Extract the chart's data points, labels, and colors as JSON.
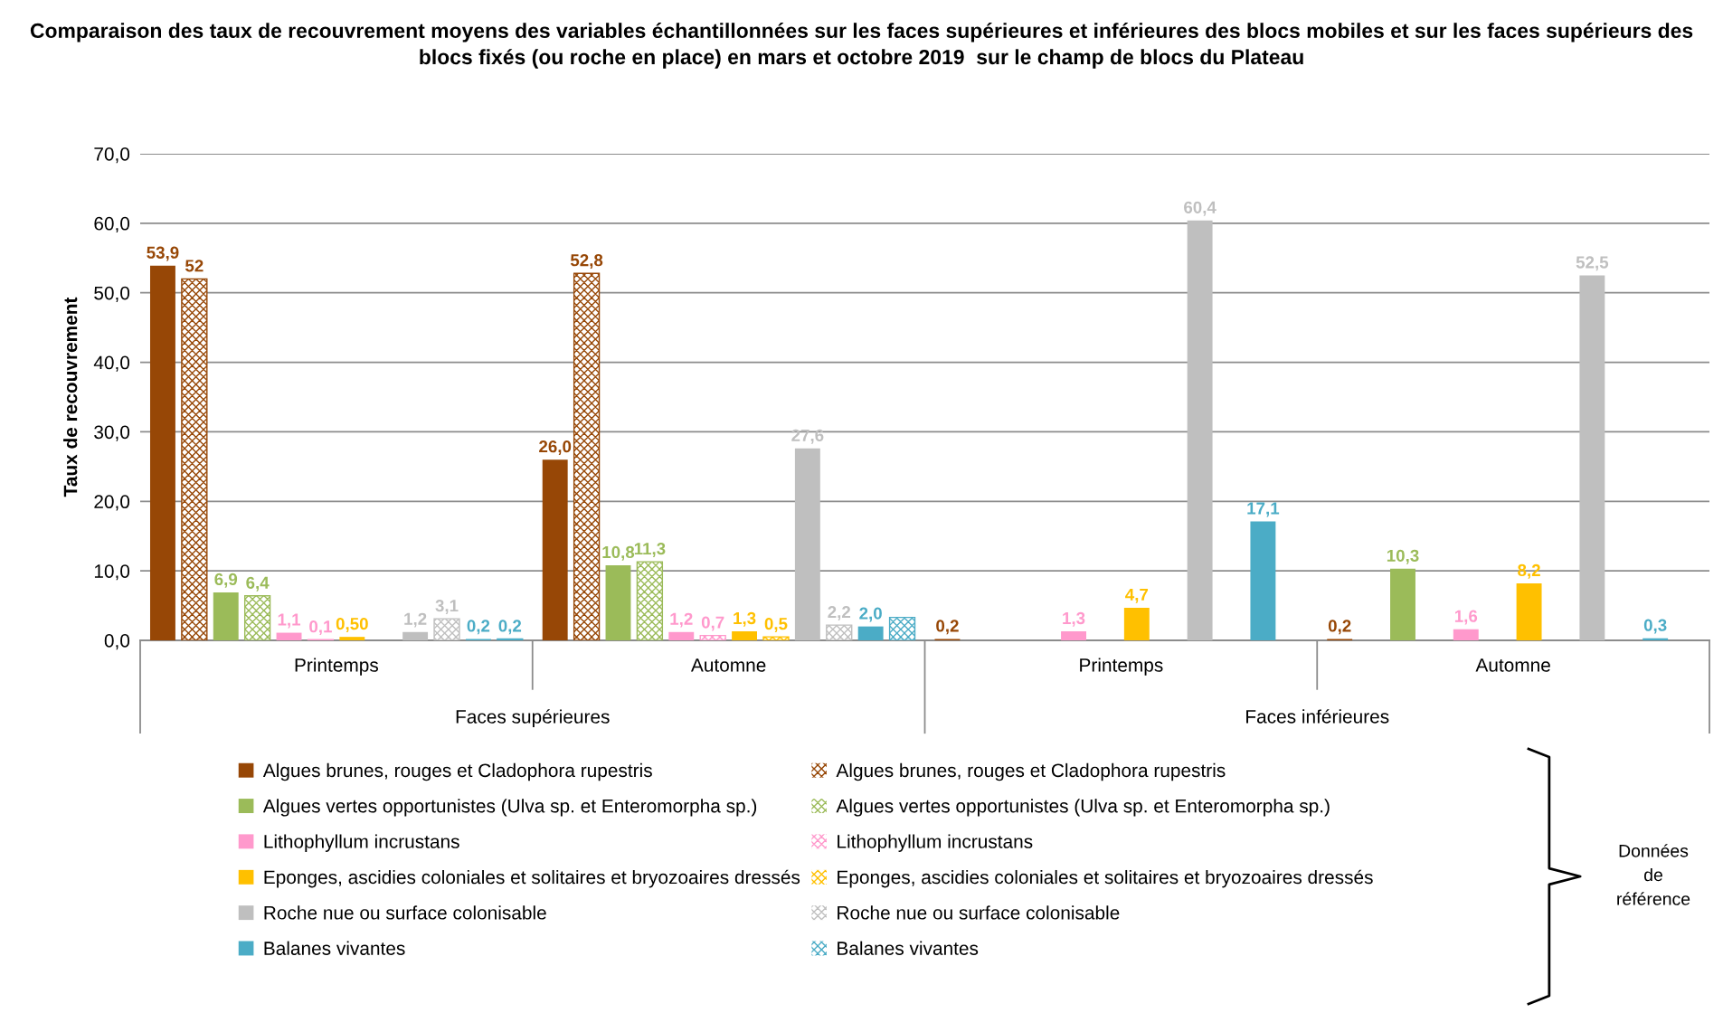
{
  "chart_data": {
    "type": "bar",
    "title": "Comparaison des taux de recouvrement moyens des variables échantillonnées sur les faces supérieures et inférieures des blocs mobiles et sur les faces supérieurs des blocs fixés (ou roche en place) en mars et octobre 2019  sur le champ de blocs du Plateau",
    "ylabel": "Taux de recouvrement",
    "categories": [
      "Printemps",
      "Automne",
      "Printemps",
      "Automne"
    ],
    "annotations": [
      "Faces supérieures",
      "Faces inférieures",
      "Données de référence"
    ],
    "ylim": [
      0,
      70
    ],
    "yticks": [
      {
        "value": 0,
        "label": "0,0"
      },
      {
        "value": 10,
        "label": "10,0"
      },
      {
        "value": 20,
        "label": "20,0"
      },
      {
        "value": 30,
        "label": "30,0"
      },
      {
        "value": 40,
        "label": "40,0"
      },
      {
        "value": 50,
        "label": "50,0"
      },
      {
        "value": 60,
        "label": "60,0"
      },
      {
        "value": 70,
        "label": "70,0"
      }
    ],
    "grid": "y",
    "legend": "bottom",
    "series": [
      {
        "name": "Algues brunes, rouges et Cladophora rupestris",
        "color": "#974706",
        "values": [
          53.9,
          26.0,
          0.2,
          0.2
        ],
        "value_labels": [
          "53,9",
          "26,0",
          "0,2",
          "0,2"
        ]
      },
      {
        "name": "Algues brunes, rouges et Cladophora rupestris",
        "color": "#974706",
        "values": [
          52,
          52.8,
          null,
          null
        ],
        "value_labels": [
          "52",
          "52,8",
          null,
          null
        ]
      },
      {
        "name": "Algues vertes opportunistes (Ulva sp. et Enteromorpha sp.)",
        "color": "#9bbb59",
        "values": [
          6.9,
          10.8,
          null,
          10.3
        ],
        "value_labels": [
          "6,9",
          "10,8",
          null,
          "10,3"
        ]
      },
      {
        "name": "Algues vertes opportunistes (Ulva sp. et Enteromorpha sp.)",
        "color": "#9bbb59",
        "values": [
          6.4,
          11.3,
          null,
          null
        ],
        "value_labels": [
          "6,4",
          "11,3",
          null,
          null
        ]
      },
      {
        "name": "Lithophyllum incrustans",
        "color": "#ff99cc",
        "values": [
          1.1,
          1.2,
          1.3,
          1.6
        ],
        "value_labels": [
          "1,1",
          "1,2",
          "1,3",
          "1,6"
        ]
      },
      {
        "name": "Lithophyllum incrustans",
        "color": "#ff99cc",
        "values": [
          0.1,
          0.7,
          null,
          null
        ],
        "value_labels": [
          "0,1",
          "0,7",
          null,
          null
        ]
      },
      {
        "name": "Eponges, ascidies coloniales et solitaires et bryozoaires dressés",
        "color": "#ffc000",
        "values": [
          0.5,
          1.3,
          4.7,
          8.2
        ],
        "value_labels": [
          "0,50",
          "1,3",
          "4,7",
          "8,2"
        ]
      },
      {
        "name": "Eponges, ascidies coloniales et solitaires et bryozoaires dressés",
        "color": "#ffc000",
        "values": [
          null,
          0.5,
          null,
          null
        ],
        "value_labels": [
          null,
          "0,5",
          null,
          null
        ]
      },
      {
        "name": "Roche nue ou surface colonisable",
        "color": "#bfbfbf",
        "values": [
          1.2,
          27.6,
          60.4,
          52.5
        ],
        "value_labels": [
          "1,2",
          "27,6",
          "60,4",
          "52,5"
        ]
      },
      {
        "name": "Roche nue ou surface colonisable",
        "color": "#bfbfbf",
        "values": [
          3.1,
          2.2,
          null,
          null
        ],
        "value_labels": [
          "3,1",
          "2,2",
          null,
          null
        ]
      },
      {
        "name": "Balanes vivantes",
        "color": "#4bacc6",
        "values": [
          0.2,
          2.0,
          17.1,
          0.3
        ],
        "value_labels": [
          "0,2",
          "2,0",
          "17,1",
          "0,3"
        ]
      },
      {
        "name": "Balanes vivantes",
        "color": "#4bacc6",
        "values": [
          0.2,
          3.3,
          null,
          null
        ],
        "value_labels": [
          "0,2",
          null,
          null,
          null
        ]
      }
    ]
  }
}
